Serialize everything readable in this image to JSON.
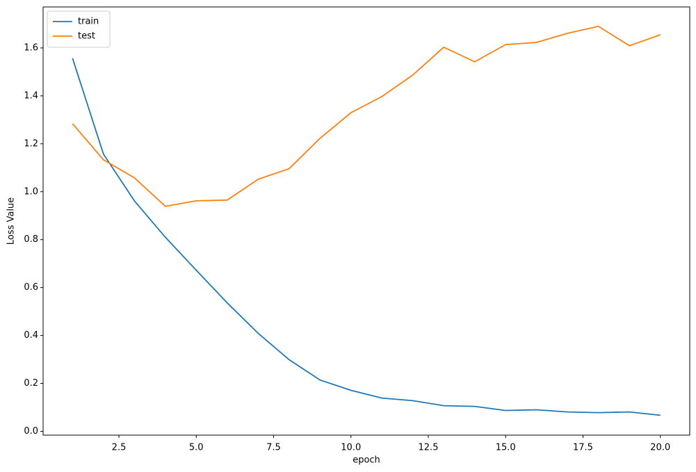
{
  "chart_data": {
    "type": "line",
    "xlabel": "epoch",
    "ylabel": "Loss Value",
    "x": [
      1,
      2,
      3,
      4,
      5,
      6,
      7,
      8,
      9,
      10,
      11,
      12,
      13,
      14,
      15,
      16,
      17,
      18,
      19,
      20
    ],
    "series": [
      {
        "name": "train",
        "color": "#1f77b4",
        "values": [
          1.557,
          1.157,
          0.962,
          0.81,
          0.672,
          0.536,
          0.409,
          0.299,
          0.214,
          0.171,
          0.139,
          0.128,
          0.107,
          0.104,
          0.087,
          0.09,
          0.081,
          0.078,
          0.081,
          0.067
        ]
      },
      {
        "name": "test",
        "color": "#ff7f0e",
        "values": [
          1.284,
          1.133,
          1.058,
          0.939,
          0.962,
          0.965,
          1.052,
          1.096,
          1.223,
          1.33,
          1.397,
          1.487,
          1.603,
          1.542,
          1.614,
          1.623,
          1.661,
          1.69,
          1.609,
          1.655
        ]
      }
    ],
    "xlim": [
      0.05,
      20.95
    ],
    "xticks": [
      2.5,
      {
        "value": 5,
        "label": "5.0"
      },
      7.5,
      {
        "value": 10,
        "label": "10.0"
      },
      12.5,
      {
        "value": 15,
        "label": "15.0"
      },
      17.5,
      {
        "value": 20,
        "label": "20.0"
      }
    ],
    "ylim": [
      -0.016,
      1.771
    ],
    "yticks": [
      {
        "value": 0,
        "label": "0.0"
      },
      0.2,
      0.4,
      0.6,
      0.8,
      {
        "value": 1,
        "label": "1.0"
      },
      1.2,
      1.4,
      1.6
    ],
    "legend": "upper left",
    "grid": false
  }
}
